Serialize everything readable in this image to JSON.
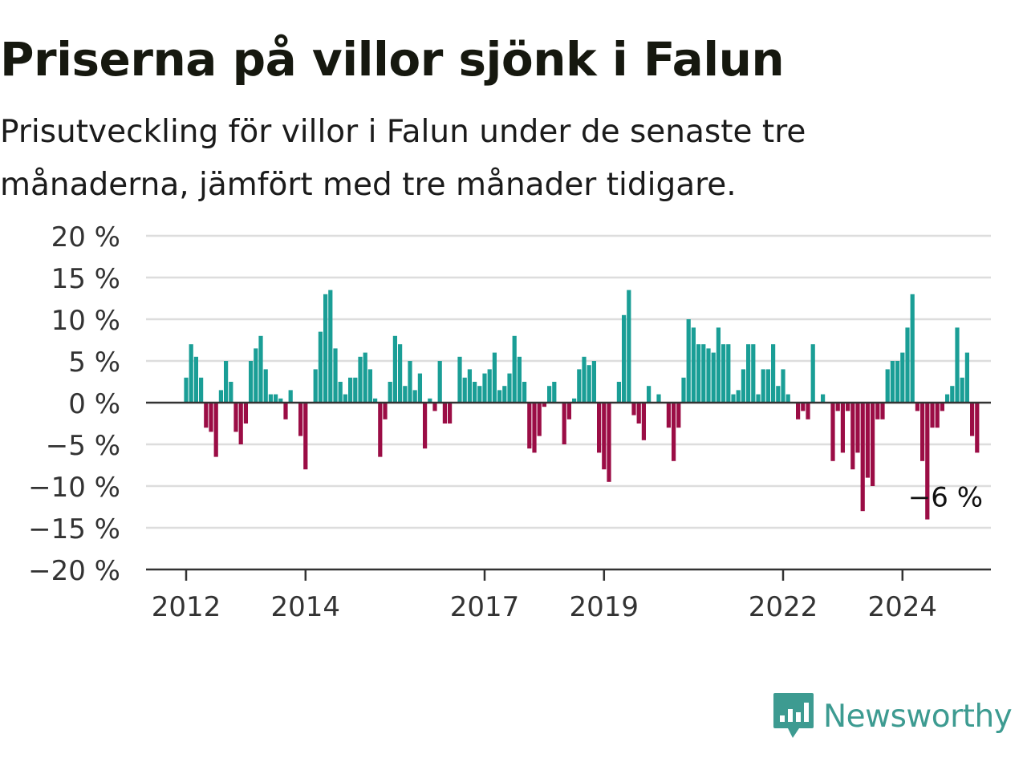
{
  "header": {
    "title": "Priserna på villor sjönk i Falun",
    "subtitle": "Prisutveckling för villor i Falun under de senaste tre månaderna, jämfört med tre månader tidigare."
  },
  "brand": {
    "name": "Newsworthy",
    "color": "#3d9b91"
  },
  "colors": {
    "positive": "#1a9e96",
    "negative": "#9b0d45",
    "grid": "#dddddd",
    "zero_line": "#333333"
  },
  "chart_data": {
    "type": "bar",
    "x_start": "2012-01",
    "frequency": "monthly",
    "values": [
      3,
      7,
      5.5,
      3,
      -3,
      -3.5,
      -6.5,
      1.5,
      5,
      2.5,
      -3.5,
      -5,
      -2.5,
      5,
      6.5,
      8,
      4,
      1,
      1,
      0.5,
      -2,
      1.5,
      0,
      -4,
      -8,
      0,
      4,
      8.5,
      13,
      13.5,
      6.5,
      2.5,
      1,
      3,
      3,
      5.5,
      6,
      4,
      0.5,
      -6.5,
      -2,
      2.5,
      8,
      7,
      2,
      5,
      1.5,
      3.5,
      -5.5,
      0.5,
      -1,
      5,
      -2.5,
      -2.5,
      0,
      5.5,
      3,
      4,
      2.5,
      2,
      3.5,
      4,
      6,
      1.5,
      2,
      3.5,
      8,
      5.5,
      2.5,
      -5.5,
      -6,
      -4,
      -0.5,
      2,
      2.5,
      0,
      -5,
      -2,
      0.5,
      4,
      5.5,
      4.5,
      5,
      -6,
      -8,
      -9.5,
      0,
      2.5,
      10.5,
      13.5,
      -1.5,
      -2.5,
      -4.5,
      2,
      0,
      1,
      0,
      -3,
      -7,
      -3,
      3,
      10,
      9,
      7,
      7,
      6.5,
      6,
      9,
      7,
      7,
      1,
      1.5,
      4,
      7,
      7,
      1,
      4,
      4,
      7,
      2,
      4,
      1,
      0,
      -2,
      -1,
      -2,
      7,
      0,
      1,
      0,
      -7,
      -1,
      -6,
      -1,
      -8,
      -6,
      -13,
      -9,
      -10,
      -2,
      -2,
      4,
      5,
      5,
      6,
      9,
      13,
      -1,
      -7,
      -14,
      -3,
      -3,
      -1,
      1,
      2,
      9,
      3,
      6,
      -4,
      -6
    ],
    "x_ticks": [
      "2012",
      "2014",
      "2017",
      "2019",
      "2022",
      "2024"
    ],
    "y_ticks": [
      "20 %",
      "15 %",
      "10 %",
      "5 %",
      "0 %",
      "−5 %",
      "−10 %",
      "−15 %",
      "−20 %"
    ],
    "ylim": [
      -20,
      20
    ],
    "annotation": "−6 %",
    "title": "Priserna på villor sjönk i Falun",
    "xlabel": "",
    "ylabel": ""
  }
}
